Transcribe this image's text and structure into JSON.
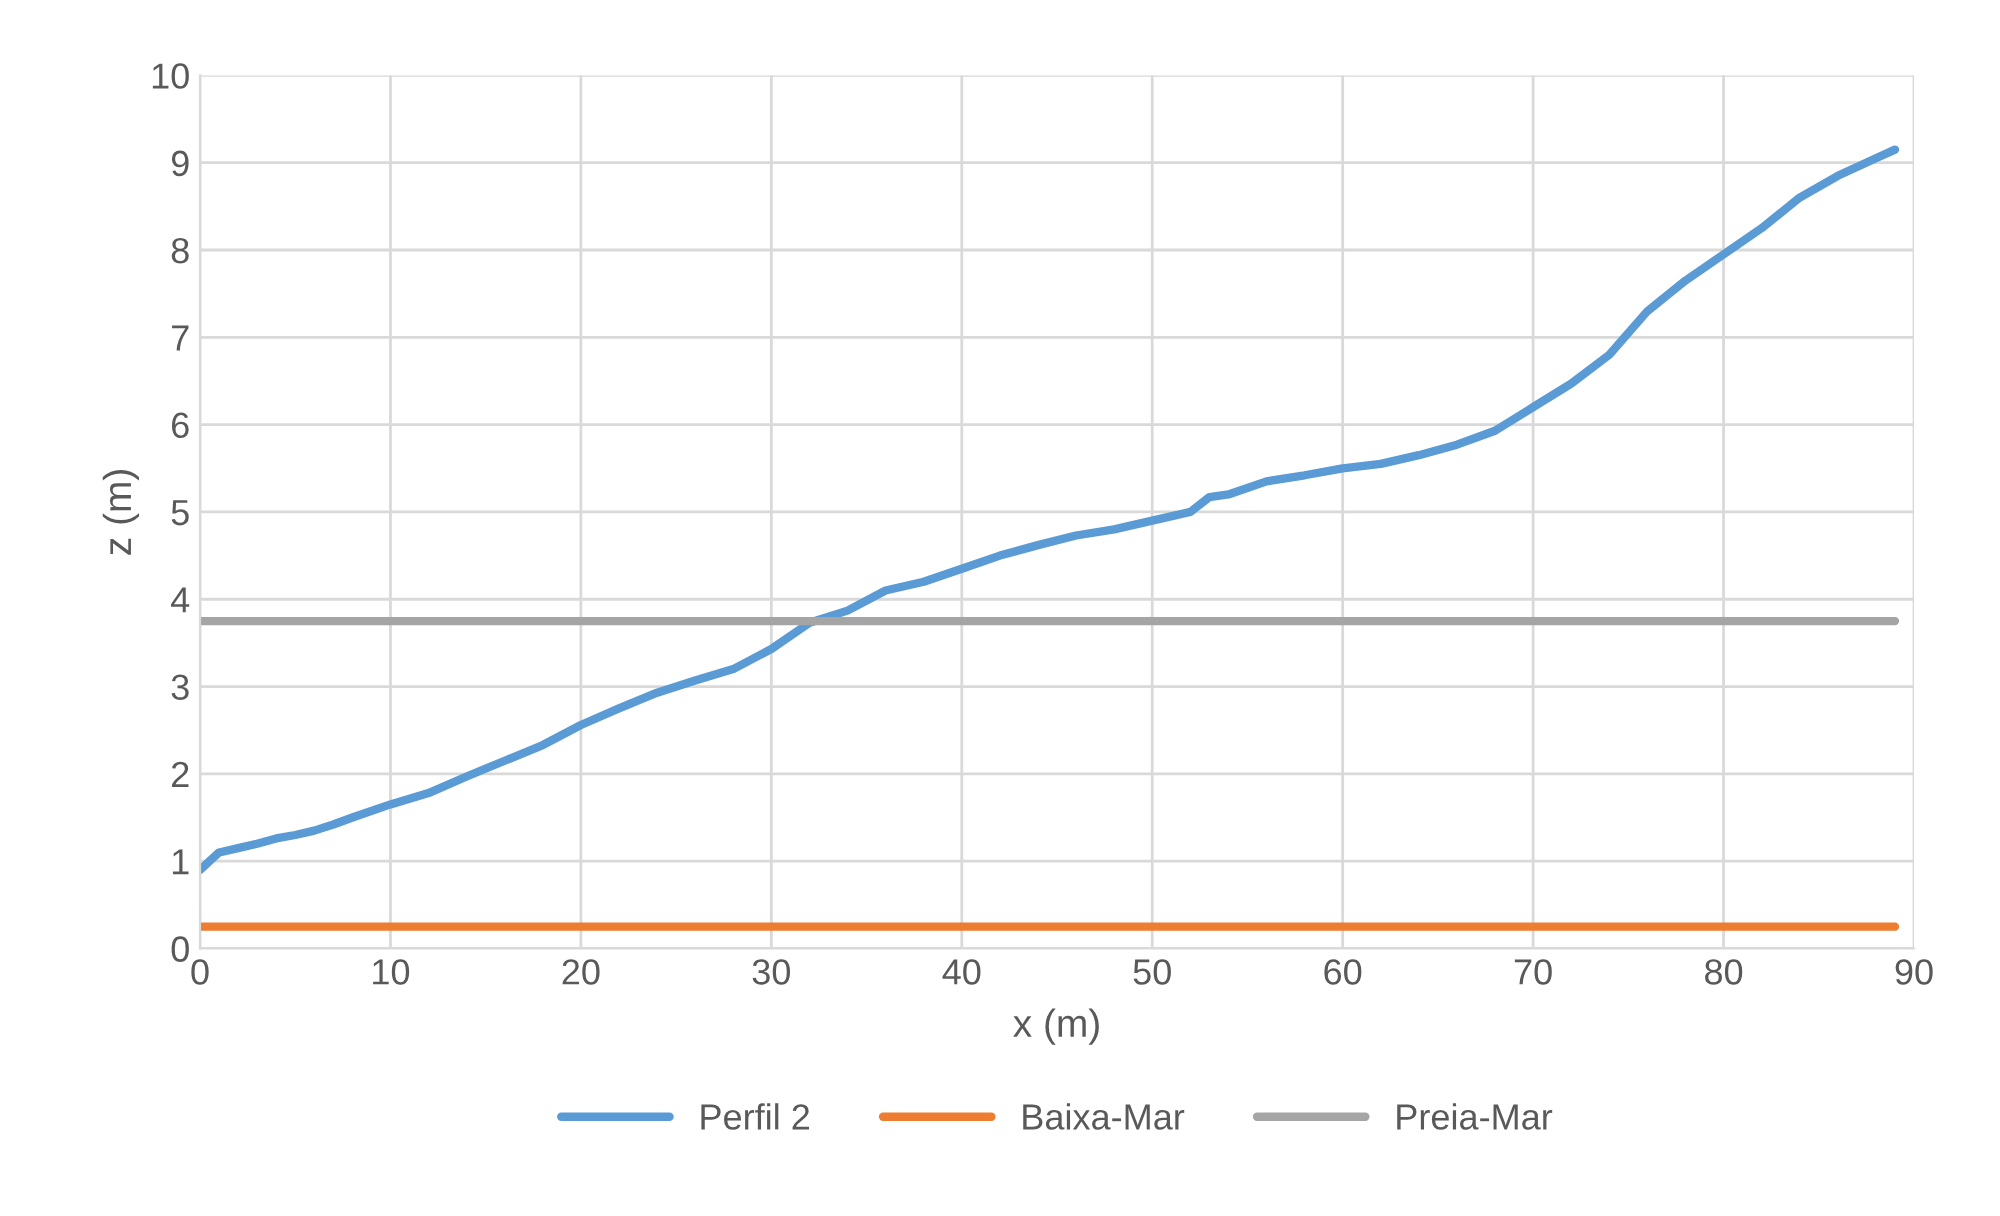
{
  "chart_data": {
    "type": "line",
    "xlabel": "x (m)",
    "ylabel": "z (m)",
    "xlim": [
      0,
      90
    ],
    "xticks": [
      0,
      10,
      20,
      30,
      40,
      50,
      60,
      70,
      80,
      90
    ],
    "ylim": [
      0,
      10
    ],
    "yticks": [
      0,
      1,
      2,
      3,
      4,
      5,
      6,
      7,
      8,
      9,
      10
    ],
    "grid": true,
    "legend": "bottom",
    "marker": "none",
    "line_style": "solid",
    "series": [
      {
        "name": "Perfil 2",
        "color": "#5b9bd5",
        "x": [
          0,
          1,
          2,
          3,
          4,
          5,
          6,
          7,
          8,
          10,
          12,
          14,
          16,
          18,
          20,
          22,
          24,
          26,
          28,
          30,
          32,
          34,
          36,
          38,
          40,
          42,
          44,
          46,
          48,
          50,
          52,
          53,
          54,
          56,
          58,
          60,
          62,
          64,
          66,
          68,
          70,
          72,
          74,
          76,
          78,
          80,
          82,
          84,
          86,
          88,
          89
        ],
        "values": [
          0.9,
          1.1,
          1.15,
          1.2,
          1.26,
          1.3,
          1.35,
          1.42,
          1.5,
          1.65,
          1.78,
          1.97,
          2.15,
          2.33,
          2.56,
          2.75,
          2.93,
          3.07,
          3.2,
          3.43,
          3.73,
          3.87,
          4.1,
          4.2,
          4.35,
          4.5,
          4.62,
          4.73,
          4.8,
          4.9,
          5.0,
          5.17,
          5.2,
          5.35,
          5.42,
          5.5,
          5.55,
          5.65,
          5.77,
          5.93,
          6.2,
          6.47,
          6.8,
          7.3,
          7.65,
          7.95,
          8.25,
          8.6,
          8.85,
          9.05,
          9.15
        ]
      },
      {
        "name": "Baixa-Mar",
        "color": "#ed7d31",
        "x": [
          0,
          89
        ],
        "values": [
          0.25,
          0.25
        ]
      },
      {
        "name": "Preia-Mar",
        "color": "#a5a5a5",
        "x": [
          0,
          89
        ],
        "values": [
          3.75,
          3.75
        ]
      }
    ]
  }
}
